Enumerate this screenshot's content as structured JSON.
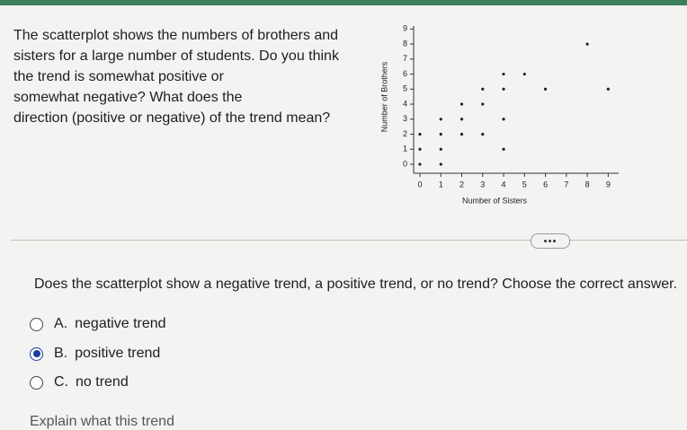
{
  "question": [
    "The scatterplot shows the numbers of brothers and",
    "sisters for a large number of students. Do you think",
    "the trend is somewhat positive or",
    "somewhat negative? What does the",
    "direction (positive or negative) of the trend mean?"
  ],
  "chart_data": {
    "type": "scatter",
    "x_label": "Number of Sisters",
    "y_label": "Number of Brothers",
    "color": "#222222",
    "x": [
      0,
      1,
      0,
      1,
      4,
      0,
      1,
      2,
      3,
      1,
      2,
      4,
      2,
      3,
      3,
      4,
      6,
      9,
      4,
      5,
      8
    ],
    "values": [
      0,
      0,
      1,
      1,
      1,
      2,
      2,
      2,
      2,
      3,
      3,
      3,
      4,
      4,
      5,
      5,
      5,
      5,
      6,
      6,
      8
    ],
    "xlim": [
      -0.3,
      9.5
    ],
    "ylim": [
      -0.6,
      9.2
    ],
    "xticks": [
      0,
      1,
      2,
      3,
      4,
      5,
      6,
      7,
      8,
      9
    ],
    "yticks": [
      0,
      1,
      2,
      3,
      4,
      5,
      6,
      7,
      8,
      9
    ]
  },
  "prompt": "Does the scatterplot show a negative trend, a positive trend, or no trend? Choose the correct answer.",
  "options": [
    {
      "letter": "A.",
      "text": "negative trend",
      "selected": false
    },
    {
      "letter": "B.",
      "text": "positive trend",
      "selected": true
    },
    {
      "letter": "C.",
      "text": "no trend",
      "selected": false
    }
  ],
  "explain": "Explain what this trend"
}
